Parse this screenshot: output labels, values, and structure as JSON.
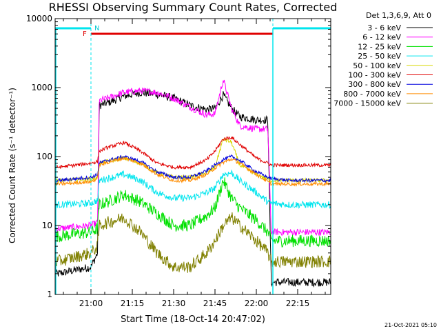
{
  "chart_data": {
    "type": "line",
    "title": "RHESSI Observing Summary Count Rates, Corrected",
    "xlabel": "Start Time (18-Oct-14 20:47:02)",
    "ylabel": "Corrected Count Rate (s⁻¹ detector⁻¹)",
    "yscale": "log",
    "ylim": [
      1,
      10000
    ],
    "xlim": [
      "20:47",
      "22:27"
    ],
    "x_ticks": [
      "21:00",
      "21:15",
      "21:30",
      "21:45",
      "22:00",
      "22:15"
    ],
    "y_ticks": [
      "1",
      "10",
      "100",
      "1000",
      "10000"
    ],
    "grid": false,
    "legend_title": "Det 1,3,6,9, Att 0",
    "legend_position": "right",
    "footer": "21-Oct-2021 05:10",
    "markers": {
      "F_label": "F",
      "N_label": "N",
      "flare_flag": {
        "start": "21:00",
        "end": "22:06",
        "color": "#e00000"
      },
      "night_flag": [
        {
          "start": "20:47",
          "end": "21:00",
          "color": "#00e5ee"
        },
        {
          "start": "22:06",
          "end": "22:27",
          "color": "#00e5ee"
        }
      ],
      "dashed_lines": [
        "21:00",
        "22:06",
        "22:27"
      ]
    },
    "series": [
      {
        "name": "3 - 6 keV",
        "color": "#000000",
        "values": [
          [
            20.8,
            2
          ],
          [
            21.0,
            2.5
          ],
          [
            21.04,
            4
          ],
          [
            21.05,
            550
          ],
          [
            21.1,
            600
          ],
          [
            21.2,
            750
          ],
          [
            21.3,
            850
          ],
          [
            21.4,
            800
          ],
          [
            21.5,
            700
          ],
          [
            21.6,
            550
          ],
          [
            21.7,
            480
          ],
          [
            21.75,
            500
          ],
          [
            21.8,
            780
          ],
          [
            21.85,
            500
          ],
          [
            21.9,
            380
          ],
          [
            22.0,
            340
          ],
          [
            22.07,
            340
          ],
          [
            22.09,
            1.5
          ],
          [
            22.2,
            1.5
          ],
          [
            22.3,
            1.5
          ]
        ]
      },
      {
        "name": "6 - 12 keV",
        "color": "#ff00ff",
        "values": [
          [
            20.8,
            9
          ],
          [
            21.0,
            10
          ],
          [
            21.04,
            11
          ],
          [
            21.05,
            650
          ],
          [
            21.1,
            700
          ],
          [
            21.2,
            850
          ],
          [
            21.3,
            900
          ],
          [
            21.4,
            850
          ],
          [
            21.5,
            700
          ],
          [
            21.6,
            520
          ],
          [
            21.7,
            400
          ],
          [
            21.75,
            420
          ],
          [
            21.8,
            1300
          ],
          [
            21.85,
            500
          ],
          [
            21.9,
            280
          ],
          [
            22.0,
            250
          ],
          [
            22.07,
            250
          ],
          [
            22.09,
            8
          ],
          [
            22.2,
            8
          ],
          [
            22.3,
            8
          ]
        ]
      },
      {
        "name": "12 - 25 keV",
        "color": "#00e000",
        "values": [
          [
            20.8,
            7
          ],
          [
            21.0,
            8
          ],
          [
            21.04,
            9
          ],
          [
            21.05,
            20
          ],
          [
            21.1,
            22
          ],
          [
            21.2,
            28
          ],
          [
            21.3,
            22
          ],
          [
            21.4,
            15
          ],
          [
            21.5,
            10
          ],
          [
            21.6,
            10
          ],
          [
            21.7,
            14
          ],
          [
            21.75,
            18
          ],
          [
            21.8,
            45
          ],
          [
            21.85,
            25
          ],
          [
            21.9,
            18
          ],
          [
            22.0,
            12
          ],
          [
            22.07,
            8
          ],
          [
            22.09,
            6
          ],
          [
            22.2,
            6
          ],
          [
            22.3,
            6
          ]
        ]
      },
      {
        "name": "25 - 50 keV",
        "color": "#00e5ee",
        "values": [
          [
            20.8,
            20
          ],
          [
            21.0,
            21
          ],
          [
            21.04,
            23
          ],
          [
            21.05,
            45
          ],
          [
            21.1,
            48
          ],
          [
            21.2,
            55
          ],
          [
            21.3,
            45
          ],
          [
            21.4,
            30
          ],
          [
            21.5,
            25
          ],
          [
            21.6,
            25
          ],
          [
            21.7,
            30
          ],
          [
            21.75,
            35
          ],
          [
            21.8,
            55
          ],
          [
            21.85,
            58
          ],
          [
            21.9,
            45
          ],
          [
            22.0,
            30
          ],
          [
            22.07,
            22
          ],
          [
            22.09,
            21
          ],
          [
            22.2,
            20
          ],
          [
            22.3,
            20
          ]
        ]
      },
      {
        "name": "50 - 100 keV",
        "color": "#d7d700",
        "values": [
          [
            20.8,
            45
          ],
          [
            21.0,
            47
          ],
          [
            21.04,
            50
          ],
          [
            21.05,
            80
          ],
          [
            21.1,
            85
          ],
          [
            21.2,
            95
          ],
          [
            21.3,
            80
          ],
          [
            21.4,
            58
          ],
          [
            21.5,
            50
          ],
          [
            21.6,
            50
          ],
          [
            21.7,
            58
          ],
          [
            21.75,
            70
          ],
          [
            21.8,
            180
          ],
          [
            21.85,
            160
          ],
          [
            21.9,
            75
          ],
          [
            22.0,
            55
          ],
          [
            22.07,
            47
          ],
          [
            22.09,
            45
          ],
          [
            22.2,
            45
          ],
          [
            22.3,
            45
          ]
        ]
      },
      {
        "name": "100 - 300 keV",
        "color": "#e00000",
        "values": [
          [
            20.8,
            70
          ],
          [
            21.0,
            80
          ],
          [
            21.04,
            85
          ],
          [
            21.05,
            120
          ],
          [
            21.1,
            135
          ],
          [
            21.2,
            160
          ],
          [
            21.3,
            120
          ],
          [
            21.4,
            80
          ],
          [
            21.5,
            70
          ],
          [
            21.6,
            70
          ],
          [
            21.7,
            90
          ],
          [
            21.75,
            120
          ],
          [
            21.8,
            180
          ],
          [
            21.85,
            190
          ],
          [
            21.9,
            150
          ],
          [
            22.0,
            95
          ],
          [
            22.07,
            80
          ],
          [
            22.09,
            75
          ],
          [
            22.2,
            75
          ],
          [
            22.3,
            75
          ]
        ]
      },
      {
        "name": "300 - 800 keV",
        "color": "#0000dd",
        "values": [
          [
            20.8,
            45
          ],
          [
            21.0,
            50
          ],
          [
            21.04,
            55
          ],
          [
            21.05,
            80
          ],
          [
            21.1,
            88
          ],
          [
            21.2,
            100
          ],
          [
            21.3,
            85
          ],
          [
            21.4,
            60
          ],
          [
            21.5,
            50
          ],
          [
            21.6,
            50
          ],
          [
            21.7,
            62
          ],
          [
            21.75,
            75
          ],
          [
            21.8,
            90
          ],
          [
            21.85,
            100
          ],
          [
            21.9,
            88
          ],
          [
            22.0,
            60
          ],
          [
            22.07,
            50
          ],
          [
            22.09,
            48
          ],
          [
            22.2,
            45
          ],
          [
            22.3,
            45
          ]
        ]
      },
      {
        "name": "800 - 7000 keV",
        "color": "#ff8c00",
        "values": [
          [
            20.8,
            40
          ],
          [
            21.0,
            43
          ],
          [
            21.04,
            48
          ],
          [
            21.05,
            75
          ],
          [
            21.1,
            82
          ],
          [
            21.2,
            95
          ],
          [
            21.3,
            80
          ],
          [
            21.4,
            55
          ],
          [
            21.5,
            45
          ],
          [
            21.6,
            45
          ],
          [
            21.7,
            55
          ],
          [
            21.75,
            68
          ],
          [
            21.8,
            82
          ],
          [
            21.85,
            92
          ],
          [
            21.9,
            80
          ],
          [
            22.0,
            55
          ],
          [
            22.07,
            43
          ],
          [
            22.09,
            40
          ],
          [
            22.2,
            40
          ],
          [
            22.3,
            40
          ]
        ]
      },
      {
        "name": "7000 - 15000 keV",
        "color": "#808000",
        "values": [
          [
            20.8,
            3
          ],
          [
            21.0,
            4
          ],
          [
            21.04,
            5
          ],
          [
            21.05,
            10
          ],
          [
            21.1,
            11
          ],
          [
            21.2,
            13
          ],
          [
            21.3,
            8
          ],
          [
            21.4,
            4
          ],
          [
            21.5,
            2.5
          ],
          [
            21.6,
            2.5
          ],
          [
            21.7,
            4
          ],
          [
            21.75,
            6
          ],
          [
            21.8,
            10
          ],
          [
            21.85,
            13
          ],
          [
            21.9,
            10
          ],
          [
            22.0,
            6
          ],
          [
            22.07,
            4
          ],
          [
            22.09,
            3
          ],
          [
            22.2,
            3
          ],
          [
            22.3,
            3
          ]
        ]
      }
    ]
  }
}
